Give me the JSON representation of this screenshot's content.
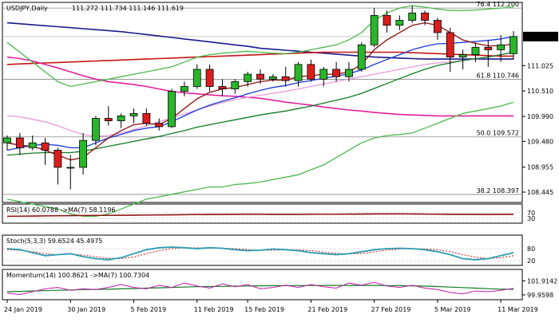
{
  "chart_data": {
    "type": "candlestick",
    "header": {
      "symbol": "USDJPY,Daily",
      "ohlc": "111.272 111.734 111.146 111.619"
    },
    "x_labels": [
      "24 Jan 2019",
      "30 Jan 2019",
      "5 Feb 2019",
      "11 Feb 2019",
      "15 Feb 2019",
      "21 Feb 2019",
      "27 Feb 2019",
      "5 Mar 2019",
      "11 Mar 2019"
    ],
    "x_label_bar_index": [
      0,
      5,
      10,
      15,
      19,
      24,
      29,
      34,
      39
    ],
    "price_axis": {
      "ylim": [
        108.25,
        112.3
      ],
      "ticks": [
        "111.025",
        "110.510",
        "109.990",
        "109.480",
        "108.955",
        "108.445"
      ],
      "tick_values": [
        111.025,
        110.51,
        109.99,
        109.48,
        108.955,
        108.445
      ],
      "current": "111.619",
      "current_value": 111.619
    },
    "fib_levels": [
      {
        "label": "76.4 112.200",
        "value": 112.2
      },
      {
        "label": "61.8 110.746",
        "value": 110.746
      },
      {
        "label": "50.0 109.572",
        "value": 109.572
      },
      {
        "label": "38.2 108.397",
        "value": 108.397
      }
    ],
    "candles": [
      [
        109.45,
        109.6,
        109.3,
        109.55
      ],
      [
        109.55,
        109.65,
        109.2,
        109.35
      ],
      [
        109.35,
        109.6,
        109.3,
        109.45
      ],
      [
        109.45,
        109.55,
        109.0,
        109.3
      ],
      [
        109.3,
        109.35,
        108.6,
        108.95
      ],
      [
        108.95,
        109.2,
        108.5,
        108.95
      ],
      [
        108.95,
        109.65,
        108.8,
        109.5
      ],
      [
        109.5,
        110.0,
        109.4,
        109.95
      ],
      [
        109.95,
        110.2,
        109.8,
        109.9
      ],
      [
        109.9,
        110.05,
        109.75,
        110.0
      ],
      [
        110.0,
        110.15,
        109.85,
        110.05
      ],
      [
        110.05,
        110.15,
        109.8,
        109.85
      ],
      [
        109.85,
        109.95,
        109.7,
        109.78
      ],
      [
        109.78,
        110.55,
        109.75,
        110.5
      ],
      [
        110.5,
        110.7,
        110.4,
        110.6
      ],
      [
        110.6,
        111.05,
        110.55,
        110.95
      ],
      [
        110.95,
        111.05,
        110.5,
        110.6
      ],
      [
        110.6,
        110.75,
        110.4,
        110.55
      ],
      [
        110.55,
        110.75,
        110.45,
        110.7
      ],
      [
        110.7,
        110.9,
        110.6,
        110.85
      ],
      [
        110.85,
        110.95,
        110.65,
        110.75
      ],
      [
        110.75,
        110.85,
        110.7,
        110.8
      ],
      [
        110.8,
        111.0,
        110.6,
        110.72
      ],
      [
        110.72,
        111.1,
        110.6,
        111.05
      ],
      [
        111.05,
        111.15,
        110.7,
        110.75
      ],
      [
        110.75,
        111.0,
        110.6,
        110.95
      ],
      [
        110.95,
        111.1,
        110.7,
        110.8
      ],
      [
        110.8,
        111.1,
        110.7,
        110.95
      ],
      [
        110.95,
        111.5,
        110.9,
        111.45
      ],
      [
        111.45,
        112.2,
        111.4,
        112.05
      ],
      [
        112.05,
        112.15,
        111.7,
        111.85
      ],
      [
        111.85,
        112.05,
        111.75,
        111.95
      ],
      [
        111.95,
        112.25,
        111.9,
        112.1
      ],
      [
        112.1,
        112.15,
        111.85,
        111.95
      ],
      [
        111.95,
        112.0,
        111.55,
        111.7
      ],
      [
        111.7,
        111.8,
        110.9,
        111.2
      ],
      [
        111.2,
        111.35,
        110.95,
        111.25
      ],
      [
        111.25,
        111.5,
        111.1,
        111.4
      ],
      [
        111.4,
        111.55,
        111.0,
        111.35
      ],
      [
        111.35,
        111.65,
        111.1,
        111.45
      ],
      [
        111.27,
        111.73,
        111.15,
        111.62
      ]
    ],
    "ma_series": [
      {
        "color": "#1a1a8c",
        "values": [
          111.9,
          111.88,
          111.86,
          111.84,
          111.82,
          111.8,
          111.78,
          111.76,
          111.74,
          111.72,
          111.69,
          111.66,
          111.63,
          111.6,
          111.57,
          111.54,
          111.51,
          111.48,
          111.45,
          111.42,
          111.38,
          111.36,
          111.34,
          111.32,
          111.3,
          111.28,
          111.26,
          111.24,
          111.22,
          111.2,
          111.19,
          111.18,
          111.17,
          111.16,
          111.16,
          111.16,
          111.16,
          111.16,
          111.16,
          111.16,
          111.16
        ]
      },
      {
        "color": "#c81414",
        "values": [
          111.05,
          111.06,
          111.07,
          111.08,
          111.09,
          111.1,
          111.11,
          111.12,
          111.13,
          111.14,
          111.15,
          111.16,
          111.17,
          111.18,
          111.19,
          111.2,
          111.21,
          111.22,
          111.23,
          111.24,
          111.25,
          111.26,
          111.27,
          111.28,
          111.29,
          111.3,
          111.3,
          111.3,
          111.3,
          111.3,
          111.3,
          111.3,
          111.29,
          111.28,
          111.27,
          111.26,
          111.25,
          111.24,
          111.23,
          111.22,
          111.22
        ]
      },
      {
        "color": "#e0209c",
        "values": [
          111.2,
          111.17,
          111.12,
          111.05,
          110.98,
          110.9,
          110.82,
          110.75,
          110.7,
          110.67,
          110.64,
          110.6,
          110.55,
          110.5,
          110.47,
          110.45,
          110.43,
          110.41,
          110.4,
          110.38,
          110.36,
          110.32,
          110.28,
          110.25,
          110.22,
          110.18,
          110.15,
          110.12,
          110.1,
          110.07,
          110.05,
          110.03,
          110.02,
          110.01,
          110.0,
          110.0,
          110.0,
          110.0,
          110.0,
          110.0,
          110.0
        ]
      },
      {
        "color": "#e89ad8",
        "values": [
          110.0,
          109.98,
          109.93,
          109.88,
          109.8,
          109.7,
          109.62,
          109.58,
          109.6,
          109.65,
          109.72,
          109.8,
          109.88,
          109.96,
          110.04,
          110.12,
          110.2,
          110.27,
          110.33,
          110.38,
          110.42,
          110.46,
          110.5,
          110.55,
          110.6,
          110.65,
          110.7,
          110.75,
          110.8,
          110.85,
          110.9,
          110.95,
          111.0,
          111.05,
          111.08,
          111.1,
          111.13,
          111.16,
          111.2,
          111.25,
          111.3
        ]
      },
      {
        "color": "#117a22",
        "values": [
          109.2,
          109.22,
          109.24,
          109.25,
          109.25,
          109.25,
          109.28,
          109.33,
          109.38,
          109.43,
          109.48,
          109.53,
          109.58,
          109.64,
          109.7,
          109.77,
          109.82,
          109.87,
          109.92,
          109.97,
          110.02,
          110.06,
          110.1,
          110.15,
          110.2,
          110.26,
          110.32,
          110.38,
          110.46,
          110.56,
          110.66,
          110.76,
          110.86,
          110.95,
          111.03,
          111.08,
          111.13,
          111.17,
          111.2,
          111.25,
          111.3
        ]
      },
      {
        "color": "#1a3ad8",
        "values": [
          109.3,
          109.35,
          109.4,
          109.42,
          109.4,
          109.35,
          109.35,
          109.45,
          109.55,
          109.62,
          109.7,
          109.75,
          109.78,
          109.88,
          110.0,
          110.12,
          110.22,
          110.3,
          110.37,
          110.45,
          110.52,
          110.58,
          110.62,
          110.68,
          110.72,
          110.77,
          110.81,
          110.86,
          110.94,
          111.05,
          111.15,
          111.25,
          111.35,
          111.42,
          111.47,
          111.48,
          111.5,
          111.52,
          111.54,
          111.57,
          111.62
        ]
      },
      {
        "color": "#8b1010",
        "values": [
          109.45,
          109.4,
          109.38,
          109.3,
          109.2,
          109.1,
          109.15,
          109.35,
          109.55,
          109.7,
          109.82,
          109.85,
          109.82,
          109.95,
          110.15,
          110.35,
          110.48,
          110.55,
          110.58,
          110.64,
          110.7,
          110.73,
          110.73,
          110.8,
          110.82,
          110.85,
          110.85,
          110.9,
          111.05,
          111.35,
          111.55,
          111.7,
          111.85,
          111.9,
          111.85,
          111.7,
          111.55,
          111.48,
          111.43,
          111.43,
          111.47
        ]
      },
      {
        "color": "#4db84d",
        "values": [
          111.5,
          111.3,
          111.1,
          110.9,
          110.7,
          110.6,
          110.65,
          110.7,
          110.75,
          110.8,
          110.85,
          110.9,
          110.95,
          111.0,
          111.1,
          111.2,
          111.25,
          111.28,
          111.3,
          111.32,
          111.3,
          111.28,
          111.27,
          111.3,
          111.35,
          111.4,
          111.45,
          111.55,
          111.7,
          111.95,
          112.1,
          112.2,
          112.25,
          112.22,
          112.18,
          112.15,
          112.15,
          112.16,
          112.18,
          112.2,
          112.22
        ]
      },
      {
        "color": "#4db84d",
        "values": [
          108.3,
          108.25,
          108.2,
          108.15,
          108.1,
          108.0,
          107.95,
          107.95,
          108.0,
          108.1,
          108.2,
          108.3,
          108.35,
          108.4,
          108.45,
          108.5,
          108.55,
          108.55,
          108.6,
          108.62,
          108.65,
          108.7,
          108.75,
          108.8,
          108.9,
          109.0,
          109.15,
          109.3,
          109.45,
          109.55,
          109.6,
          109.62,
          109.65,
          109.75,
          109.85,
          109.95,
          110.05,
          110.1,
          110.15,
          110.2,
          110.28
        ]
      }
    ],
    "rsi": {
      "label": "RSI(14) 60.0788 ->MA(7) 58.1196",
      "levels": [
        "70",
        "30"
      ],
      "level_values": [
        70,
        30
      ],
      "ylim": [
        0,
        100
      ],
      "values": [
        45,
        46,
        47,
        48,
        49,
        50,
        51,
        52,
        52,
        53,
        53,
        54,
        55,
        56,
        57,
        58,
        59,
        59,
        60,
        60,
        60,
        59,
        59,
        59,
        60,
        60,
        60,
        61,
        62,
        63,
        63,
        63,
        62,
        61,
        60,
        59,
        59,
        59,
        59,
        60,
        60
      ],
      "ma_values": [
        45,
        46,
        46,
        47,
        48,
        49,
        50,
        51,
        52,
        52,
        53,
        54,
        54,
        55,
        56,
        57,
        57,
        58,
        58,
        59,
        59,
        59,
        59,
        59,
        59,
        60,
        60,
        60,
        60,
        61,
        61,
        62,
        62,
        61,
        61,
        60,
        60,
        59,
        58,
        58,
        58
      ]
    },
    "stoch": {
      "label": "Stoch(5,3,3) 59.6524 45.4975",
      "levels": [
        "80",
        "20"
      ],
      "level_values": [
        80,
        20
      ],
      "ylim": [
        0,
        100
      ],
      "k": [
        80,
        75,
        60,
        45,
        50,
        55,
        40,
        30,
        25,
        35,
        55,
        75,
        85,
        88,
        85,
        80,
        85,
        82,
        75,
        70,
        72,
        78,
        75,
        70,
        60,
        55,
        50,
        55,
        65,
        75,
        80,
        82,
        80,
        75,
        65,
        50,
        30,
        25,
        30,
        45,
        60
      ],
      "d": [
        75,
        72,
        65,
        55,
        50,
        52,
        48,
        40,
        32,
        30,
        38,
        55,
        70,
        80,
        85,
        84,
        83,
        82,
        80,
        75,
        72,
        73,
        75,
        74,
        70,
        62,
        56,
        54,
        56,
        64,
        73,
        78,
        80,
        79,
        75,
        65,
        50,
        38,
        30,
        35,
        45
      ]
    },
    "momentum": {
      "label": "Momentum(14) 100.8621 ->MA(7) 100.7304",
      "ticks": [
        "101.9142",
        "99.9598"
      ],
      "tick_values": [
        101.9142,
        99.9598
      ],
      "ylim": [
        99.4,
        102.4
      ],
      "values": [
        100.2,
        100.0,
        100.4,
        100.8,
        101.0,
        100.6,
        100.8,
        100.7,
        101.0,
        101.4,
        101.0,
        100.8,
        101.3,
        101.0,
        101.6,
        101.2,
        100.9,
        101.5,
        101.1,
        101.4,
        100.8,
        101.0,
        101.3,
        101.0,
        101.4,
        101.1,
        100.9,
        101.6,
        101.3,
        101.7,
        101.2,
        101.0,
        101.3,
        100.9,
        100.7,
        100.3,
        100.1,
        100.5,
        100.4,
        100.6,
        100.86
      ],
      "ma_values": [
        100.4,
        100.45,
        100.5,
        100.55,
        100.6,
        100.65,
        100.7,
        100.72,
        100.75,
        100.8,
        100.85,
        100.9,
        100.95,
        101.0,
        101.05,
        101.1,
        101.12,
        101.15,
        101.18,
        101.2,
        101.22,
        101.24,
        101.25,
        101.26,
        101.27,
        101.28,
        101.28,
        101.28,
        101.28,
        101.28,
        101.26,
        101.24,
        101.22,
        101.18,
        101.12,
        101.05,
        100.98,
        100.9,
        100.82,
        100.76,
        100.73
      ]
    }
  }
}
